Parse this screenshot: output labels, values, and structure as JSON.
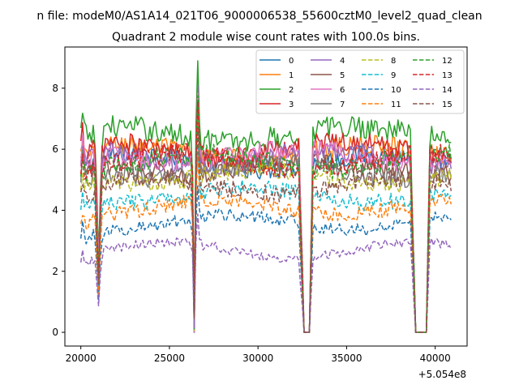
{
  "figure": {
    "suptitle": "n file: modeM0/AS1A14_021T06_9000006538_55600cztM0_level2_quad_clean",
    "title": "Quadrant 2 module wise count rates with 100.0s bins."
  },
  "chart_data": {
    "type": "line",
    "title": "Quadrant 2 module wise count rates with 100.0s bins.",
    "xlabel": "",
    "ylabel": "",
    "xlim": [
      19100,
      41800
    ],
    "ylim": [
      -0.45,
      9.35
    ],
    "x_offset_label": "+5.054e8",
    "grid": false,
    "legend_position": "top-right",
    "legend_columns": 4,
    "x_ticks": [
      20000,
      25000,
      30000,
      35000,
      40000
    ],
    "x_tick_labels": [
      "20000",
      "25000",
      "30000",
      "35000",
      "40000"
    ],
    "y_ticks": [
      0,
      2,
      4,
      6,
      8
    ],
    "y_tick_labels": [
      "0",
      "2",
      "4",
      "6",
      "8"
    ],
    "x_start": 20000,
    "x_end": 40900,
    "bin_seconds": 100,
    "gaps": [
      {
        "start": 32600,
        "end": 32900
      },
      {
        "start": 38900,
        "end": 39500
      }
    ],
    "dips": [
      {
        "center": 21000,
        "value": 1.0
      },
      {
        "center": 26400,
        "value": 0.15
      }
    ],
    "peaks": [
      {
        "x": 26600,
        "value": 8.3
      },
      {
        "x": 20100,
        "value": 6.4
      }
    ],
    "series": [
      {
        "name": "0",
        "color": "#1f77b4",
        "dash": "solid",
        "level": 5.6
      },
      {
        "name": "1",
        "color": "#ff7f0e",
        "dash": "solid",
        "level": 5.9
      },
      {
        "name": "2",
        "color": "#2ca02c",
        "dash": "solid",
        "level": 6.5
      },
      {
        "name": "3",
        "color": "#d62728",
        "dash": "solid",
        "level": 6.0
      },
      {
        "name": "4",
        "color": "#9467bd",
        "dash": "solid",
        "level": 5.7
      },
      {
        "name": "5",
        "color": "#8c564b",
        "dash": "solid",
        "level": 5.4
      },
      {
        "name": "6",
        "color": "#e377c2",
        "dash": "solid",
        "level": 5.8
      },
      {
        "name": "7",
        "color": "#7f7f7f",
        "dash": "solid",
        "level": 5.3
      },
      {
        "name": "8",
        "color": "#bcbd22",
        "dash": "dashed",
        "level": 5.1
      },
      {
        "name": "9",
        "color": "#17becf",
        "dash": "dashed",
        "level": 4.5
      },
      {
        "name": "10",
        "color": "#1f77b4",
        "dash": "dashed",
        "level": 3.6
      },
      {
        "name": "11",
        "color": "#ff7f0e",
        "dash": "dashed",
        "level": 4.1
      },
      {
        "name": "12",
        "color": "#2ca02c",
        "dash": "dashed",
        "level": 5.6
      },
      {
        "name": "13",
        "color": "#d62728",
        "dash": "dashed",
        "level": 5.6
      },
      {
        "name": "14",
        "color": "#9467bd",
        "dash": "dashed",
        "level": 2.7
      },
      {
        "name": "15",
        "color": "#8c564b",
        "dash": "dashed",
        "level": 4.8
      }
    ]
  }
}
